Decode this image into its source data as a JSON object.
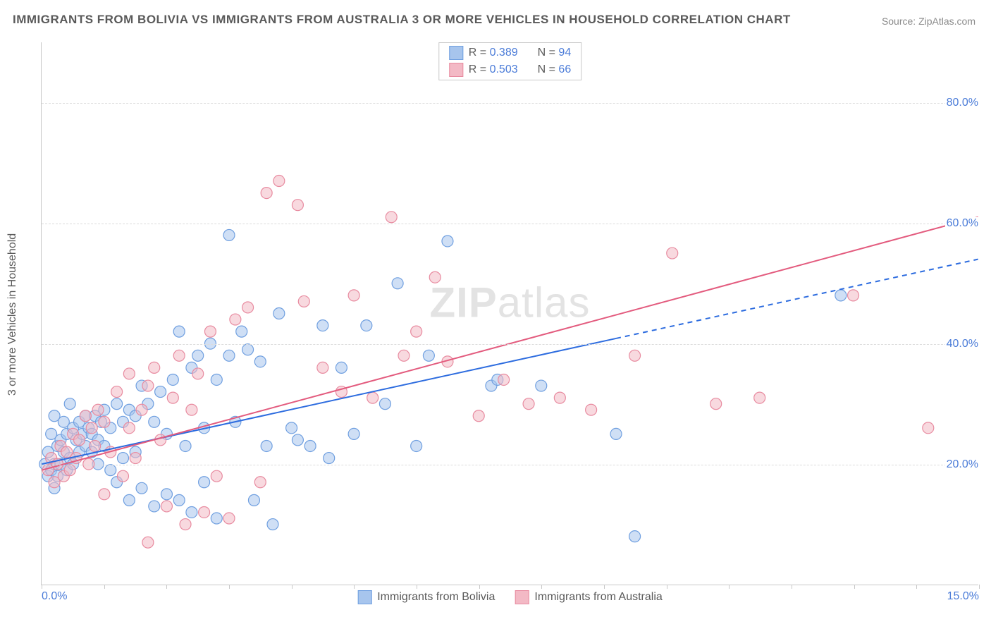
{
  "title": "IMMIGRANTS FROM BOLIVIA VS IMMIGRANTS FROM AUSTRALIA 3 OR MORE VEHICLES IN HOUSEHOLD CORRELATION CHART",
  "source": "Source: ZipAtlas.com",
  "watermark_prefix": "ZIP",
  "watermark_suffix": "atlas",
  "ylabel": "3 or more Vehicles in Household",
  "chart": {
    "type": "scatter",
    "background_color": "#ffffff",
    "grid_color": "#dcdcdc",
    "axis_color": "#c8c8c8",
    "tick_label_color": "#4a7bd8",
    "text_color": "#5a5a5a",
    "xlim": [
      0,
      15
    ],
    "ylim": [
      0,
      90
    ],
    "yticks": [
      20,
      40,
      60,
      80
    ],
    "ytick_labels": [
      "20.0%",
      "40.0%",
      "60.0%",
      "80.0%"
    ],
    "xticks": [
      0,
      1,
      2,
      3,
      4,
      5,
      6,
      7,
      8,
      9,
      10,
      11,
      12,
      13,
      14,
      15
    ],
    "xtick_labels": {
      "0": "0.0%",
      "15": "15.0%"
    },
    "marker_radius": 8,
    "trend_line_width": 2,
    "series": [
      {
        "name": "Immigrants from Bolivia",
        "fill": "#a7c5ed",
        "stroke": "#6f9fe0",
        "trend_color": "#2d6cdf",
        "trend_dash_after_x": 9.2,
        "R": "0.389",
        "N": "94",
        "trend": {
          "x0": 0,
          "y0": 20,
          "x1": 15,
          "y1": 54
        },
        "points": [
          [
            0.05,
            20
          ],
          [
            0.1,
            18
          ],
          [
            0.1,
            22
          ],
          [
            0.15,
            19
          ],
          [
            0.15,
            25
          ],
          [
            0.2,
            20
          ],
          [
            0.2,
            16
          ],
          [
            0.2,
            28
          ],
          [
            0.25,
            23
          ],
          [
            0.25,
            18
          ],
          [
            0.3,
            24
          ],
          [
            0.3,
            20
          ],
          [
            0.35,
            22
          ],
          [
            0.35,
            27
          ],
          [
            0.4,
            25
          ],
          [
            0.4,
            19
          ],
          [
            0.45,
            21
          ],
          [
            0.45,
            30
          ],
          [
            0.5,
            26
          ],
          [
            0.5,
            20
          ],
          [
            0.55,
            24
          ],
          [
            0.6,
            27
          ],
          [
            0.6,
            22
          ],
          [
            0.65,
            25
          ],
          [
            0.7,
            23
          ],
          [
            0.7,
            28
          ],
          [
            0.75,
            26
          ],
          [
            0.8,
            25
          ],
          [
            0.8,
            22
          ],
          [
            0.85,
            28
          ],
          [
            0.9,
            24
          ],
          [
            0.9,
            20
          ],
          [
            0.95,
            27
          ],
          [
            1.0,
            23
          ],
          [
            1.0,
            29
          ],
          [
            1.1,
            26
          ],
          [
            1.1,
            19
          ],
          [
            1.2,
            30
          ],
          [
            1.2,
            17
          ],
          [
            1.3,
            27
          ],
          [
            1.3,
            21
          ],
          [
            1.4,
            29
          ],
          [
            1.4,
            14
          ],
          [
            1.5,
            28
          ],
          [
            1.5,
            22
          ],
          [
            1.6,
            33
          ],
          [
            1.6,
            16
          ],
          [
            1.7,
            30
          ],
          [
            1.8,
            27
          ],
          [
            1.8,
            13
          ],
          [
            1.9,
            32
          ],
          [
            2.0,
            25
          ],
          [
            2.0,
            15
          ],
          [
            2.1,
            34
          ],
          [
            2.2,
            14
          ],
          [
            2.2,
            42
          ],
          [
            2.3,
            23
          ],
          [
            2.4,
            36
          ],
          [
            2.4,
            12
          ],
          [
            2.5,
            38
          ],
          [
            2.6,
            26
          ],
          [
            2.6,
            17
          ],
          [
            2.7,
            40
          ],
          [
            2.8,
            34
          ],
          [
            2.8,
            11
          ],
          [
            3.0,
            58
          ],
          [
            3.0,
            38
          ],
          [
            3.1,
            27
          ],
          [
            3.2,
            42
          ],
          [
            3.3,
            39
          ],
          [
            3.4,
            14
          ],
          [
            3.5,
            37
          ],
          [
            3.6,
            23
          ],
          [
            3.7,
            10
          ],
          [
            3.8,
            45
          ],
          [
            4.0,
            26
          ],
          [
            4.1,
            24
          ],
          [
            4.3,
            23
          ],
          [
            4.5,
            43
          ],
          [
            4.6,
            21
          ],
          [
            4.8,
            36
          ],
          [
            5.0,
            25
          ],
          [
            5.2,
            43
          ],
          [
            5.5,
            30
          ],
          [
            5.7,
            50
          ],
          [
            6.0,
            23
          ],
          [
            6.2,
            38
          ],
          [
            6.5,
            57
          ],
          [
            7.2,
            33
          ],
          [
            7.3,
            34
          ],
          [
            8.0,
            33
          ],
          [
            9.2,
            25
          ],
          [
            9.5,
            8
          ],
          [
            12.8,
            48
          ]
        ]
      },
      {
        "name": "Immigrants from Australia",
        "fill": "#f3b9c5",
        "stroke": "#e88ba0",
        "trend_color": "#e35b7e",
        "R": "0.503",
        "N": "66",
        "trend": {
          "x0": 0,
          "y0": 19,
          "x1": 15,
          "y1": 61
        },
        "points": [
          [
            0.1,
            19
          ],
          [
            0.15,
            21
          ],
          [
            0.2,
            17
          ],
          [
            0.25,
            20
          ],
          [
            0.3,
            23
          ],
          [
            0.35,
            18
          ],
          [
            0.4,
            22
          ],
          [
            0.45,
            19
          ],
          [
            0.5,
            25
          ],
          [
            0.55,
            21
          ],
          [
            0.6,
            24
          ],
          [
            0.7,
            28
          ],
          [
            0.75,
            20
          ],
          [
            0.8,
            26
          ],
          [
            0.85,
            23
          ],
          [
            0.9,
            29
          ],
          [
            1.0,
            15
          ],
          [
            1.0,
            27
          ],
          [
            1.1,
            22
          ],
          [
            1.2,
            32
          ],
          [
            1.3,
            18
          ],
          [
            1.4,
            26
          ],
          [
            1.4,
            35
          ],
          [
            1.5,
            21
          ],
          [
            1.6,
            29
          ],
          [
            1.7,
            7
          ],
          [
            1.7,
            33
          ],
          [
            1.8,
            36
          ],
          [
            1.9,
            24
          ],
          [
            2.0,
            13
          ],
          [
            2.1,
            31
          ],
          [
            2.2,
            38
          ],
          [
            2.3,
            10
          ],
          [
            2.4,
            29
          ],
          [
            2.5,
            35
          ],
          [
            2.6,
            12
          ],
          [
            2.7,
            42
          ],
          [
            2.8,
            18
          ],
          [
            3.0,
            11
          ],
          [
            3.1,
            44
          ],
          [
            3.3,
            46
          ],
          [
            3.5,
            17
          ],
          [
            3.6,
            65
          ],
          [
            3.8,
            67
          ],
          [
            4.1,
            63
          ],
          [
            4.2,
            47
          ],
          [
            4.5,
            36
          ],
          [
            4.8,
            32
          ],
          [
            5.0,
            48
          ],
          [
            5.3,
            31
          ],
          [
            5.6,
            61
          ],
          [
            5.8,
            38
          ],
          [
            6.0,
            42
          ],
          [
            6.3,
            51
          ],
          [
            6.5,
            37
          ],
          [
            7.0,
            28
          ],
          [
            7.4,
            34
          ],
          [
            7.8,
            30
          ],
          [
            8.3,
            31
          ],
          [
            8.8,
            29
          ],
          [
            9.5,
            38
          ],
          [
            10.1,
            55
          ],
          [
            10.8,
            30
          ],
          [
            11.5,
            31
          ],
          [
            13.0,
            48
          ],
          [
            14.2,
            26
          ]
        ]
      }
    ]
  },
  "legend_top_labels": {
    "R": "R =",
    "N": "N ="
  },
  "legend_bottom": [
    "Immigrants from Bolivia",
    "Immigrants from Australia"
  ]
}
